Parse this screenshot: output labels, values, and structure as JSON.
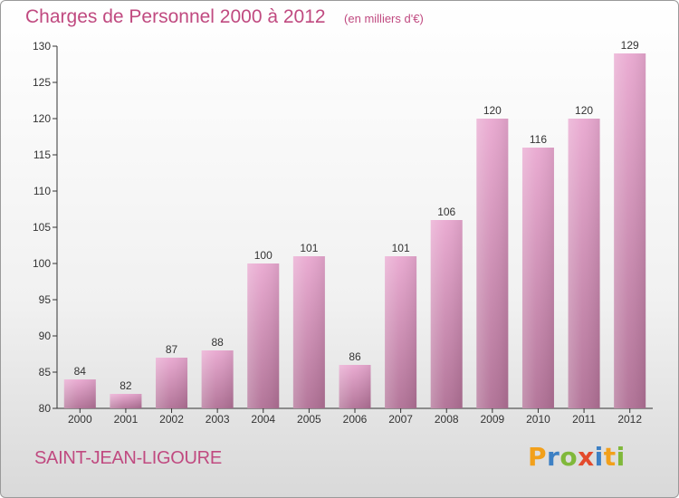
{
  "header": {
    "title": "Charges de Personnel 2000 à 2012",
    "units": "(en milliers d'€)"
  },
  "footer": {
    "commune": "SAINT-JEAN-LIGOURE",
    "brand": "Proxiti"
  },
  "colors": {
    "title": "#c04a80",
    "bar_top": "#e9a8d0",
    "bar_bottom": "#b07095",
    "axis": "#333333",
    "brand_letters": [
      "#f2a01b",
      "#3d80c4",
      "#80b83a",
      "#e34a2c",
      "#3d80c4",
      "#f2a01b",
      "#80b83a"
    ]
  },
  "chart_data": {
    "type": "bar",
    "title": "Charges de Personnel 2000 à 2012",
    "subtitle": "(en milliers d'€)",
    "categories": [
      "2000",
      "2001",
      "2002",
      "2003",
      "2004",
      "2005",
      "2006",
      "2007",
      "2008",
      "2009",
      "2010",
      "2011",
      "2012"
    ],
    "values": [
      84,
      82,
      87,
      88,
      100,
      101,
      86,
      101,
      106,
      120,
      116,
      120,
      129
    ],
    "xlabel": "",
    "ylabel": "",
    "ylim": [
      80,
      130
    ],
    "yticks": [
      80,
      85,
      90,
      95,
      100,
      105,
      110,
      115,
      120,
      125,
      130
    ],
    "grid": false,
    "legend": "none"
  }
}
